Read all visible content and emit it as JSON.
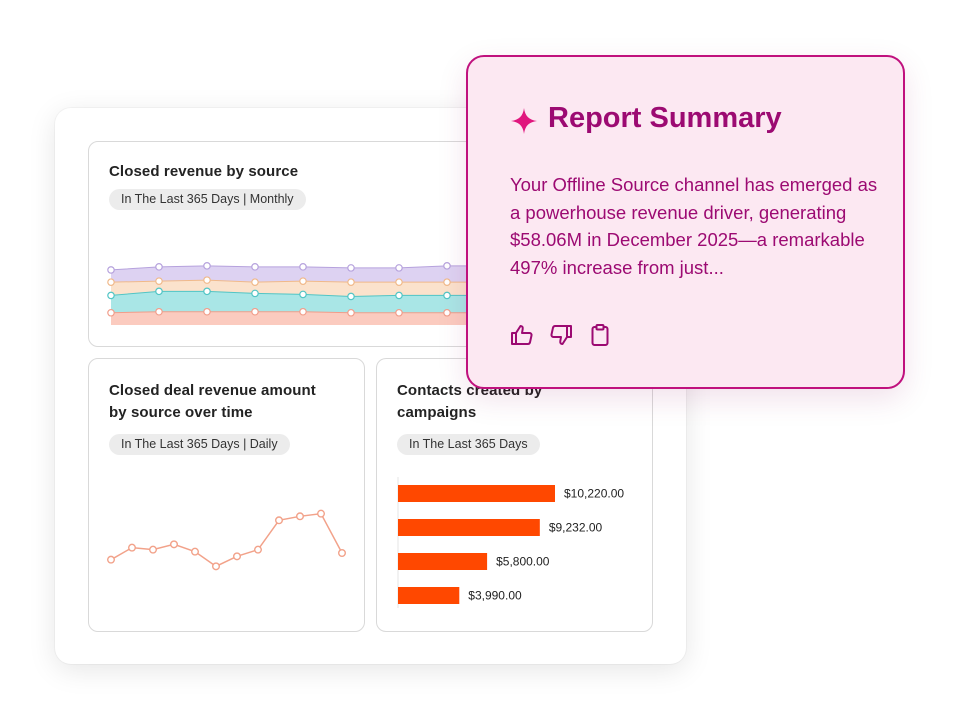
{
  "cards": {
    "revenue_by_source": {
      "title": "Closed revenue by source",
      "filter": "In The Last 365 Days | Monthly"
    },
    "deal_revenue": {
      "title_line1": "Closed deal revenue amount",
      "title_line2": "by source over time",
      "filter": "In The Last 365 Days | Daily"
    },
    "contacts_campaigns": {
      "title_line1": "Contacts created by",
      "title_line2": "campaigns",
      "filter": "In The Last 365 Days"
    }
  },
  "summary": {
    "title": "Report Summary",
    "body": "Your Offline Source channel has emerged as a powerhouse revenue driver, generating $58.06M in December 2025—a remarkable 497% increase from just...",
    "actions": [
      "thumbs-up-icon",
      "thumbs-down-icon",
      "clipboard-icon"
    ]
  },
  "colors": {
    "accent": "#9c0a72",
    "summary_border": "#c0117e",
    "summary_bg": "#fce8f2",
    "bar": "#ff4800",
    "line": "#f2a28a",
    "area_purple": "#ddd2f2",
    "area_peach": "#fbe2cc",
    "area_teal": "#a9e6e6",
    "area_salmon": "#fbcbbf"
  },
  "chart_data": [
    {
      "type": "area",
      "series": [
        {
          "values": [
            12,
            13,
            13,
            13,
            13,
            12,
            12,
            12
          ]
        },
        {
          "values": [
            17,
            20,
            20,
            18,
            17,
            16,
            17,
            17
          ]
        },
        {
          "values": [
            13,
            10,
            11,
            11,
            13,
            14,
            13,
            13
          ]
        },
        {
          "values": [
            12,
            14,
            14,
            15,
            14,
            14,
            14,
            16
          ]
        }
      ]
    },
    {
      "type": "line",
      "values": [
        5,
        23,
        20,
        28,
        17,
        -5,
        10,
        20,
        64,
        70,
        74,
        15
      ]
    },
    {
      "type": "bar",
      "orientation": "horizontal",
      "values": [
        10220,
        9232,
        5800,
        3990
      ],
      "data_labels": [
        "$10,220.00",
        "$9,232.00",
        "$5,800.00",
        "$3,990.00"
      ]
    }
  ]
}
